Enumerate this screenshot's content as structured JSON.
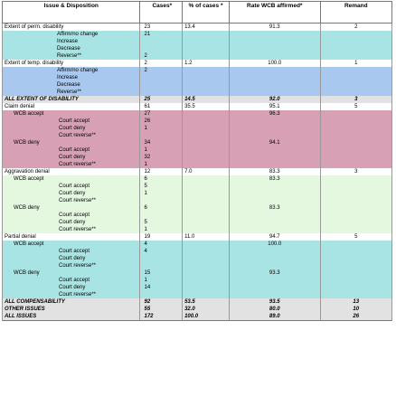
{
  "columns": [
    "Issue & Disposition",
    "Cases*",
    "% of cases *",
    "Rate WCB affirmed*",
    "Remand"
  ],
  "rows": [
    {
      "style": "white",
      "indent": 0,
      "cells": [
        "Extent of perm. disability",
        "23",
        "13.4",
        "91.3",
        "2"
      ]
    },
    {
      "style": "teal",
      "indent": 2,
      "cells": [
        "Affirm/no change",
        "21",
        "",
        "",
        ""
      ]
    },
    {
      "style": "teal",
      "indent": 2,
      "cells": [
        "Increase",
        "",
        "",
        "",
        ""
      ]
    },
    {
      "style": "teal",
      "indent": 2,
      "cells": [
        "Decrease",
        "",
        "",
        "",
        ""
      ]
    },
    {
      "style": "teal",
      "indent": 2,
      "cells": [
        "Reverse**",
        "2",
        "",
        "",
        ""
      ]
    },
    {
      "style": "white",
      "indent": 0,
      "cells": [
        "Extent of temp. disability",
        "2",
        "1.2",
        "100.0",
        "1"
      ]
    },
    {
      "style": "blue",
      "indent": 2,
      "cells": [
        "Affirm/no change",
        "2",
        "",
        "",
        ""
      ]
    },
    {
      "style": "blue",
      "indent": 2,
      "cells": [
        "Increase",
        "",
        "",
        "",
        ""
      ]
    },
    {
      "style": "blue",
      "indent": 2,
      "cells": [
        "Decrease",
        "",
        "",
        "",
        ""
      ]
    },
    {
      "style": "blue",
      "indent": 2,
      "cells": [
        "Reverse**",
        "",
        "",
        "",
        ""
      ]
    },
    {
      "style": "gray",
      "indent": 0,
      "cells": [
        "ALL EXTENT OF DISABILITY",
        "25",
        "14.5",
        "92.0",
        "3"
      ]
    },
    {
      "style": "white",
      "indent": 0,
      "cells": [
        "Claim denial",
        "61",
        "35.5",
        "95.1",
        "5"
      ]
    },
    {
      "style": "pink",
      "indent": 1,
      "cells": [
        "WCB accept",
        "27",
        "",
        "96.3",
        ""
      ]
    },
    {
      "style": "pink",
      "indent": 3,
      "cells": [
        "Court accept",
        "26",
        "",
        "",
        ""
      ]
    },
    {
      "style": "pink",
      "indent": 3,
      "cells": [
        "Court deny",
        "1",
        "",
        "",
        ""
      ]
    },
    {
      "style": "pink",
      "indent": 3,
      "cells": [
        "Court reverse**",
        "",
        "",
        "",
        ""
      ]
    },
    {
      "style": "pink",
      "indent": 1,
      "cells": [
        "WCB deny",
        "34",
        "",
        "94.1",
        ""
      ]
    },
    {
      "style": "pink",
      "indent": 3,
      "cells": [
        "Court accept",
        "1",
        "",
        "",
        ""
      ]
    },
    {
      "style": "pink",
      "indent": 3,
      "cells": [
        "Court deny",
        "32",
        "",
        "",
        ""
      ]
    },
    {
      "style": "pink",
      "indent": 3,
      "cells": [
        "Court reverse**",
        "1",
        "",
        "",
        ""
      ]
    },
    {
      "style": "white",
      "indent": 0,
      "cells": [
        "Aggravation denial",
        "12",
        "7.0",
        "83.3",
        "3"
      ]
    },
    {
      "style": "green",
      "indent": 1,
      "cells": [
        "WCB accept",
        "6",
        "",
        "83.3",
        ""
      ]
    },
    {
      "style": "green",
      "indent": 3,
      "cells": [
        "Court accept",
        "5",
        "",
        "",
        ""
      ]
    },
    {
      "style": "green",
      "indent": 3,
      "cells": [
        "Court deny",
        "1",
        "",
        "",
        ""
      ]
    },
    {
      "style": "green",
      "indent": 3,
      "cells": [
        "Court reverse**",
        "",
        "",
        "",
        ""
      ]
    },
    {
      "style": "green",
      "indent": 1,
      "cells": [
        "WCB deny",
        "6",
        "",
        "83.3",
        ""
      ]
    },
    {
      "style": "green",
      "indent": 3,
      "cells": [
        "Court accept",
        "",
        "",
        "",
        ""
      ]
    },
    {
      "style": "green",
      "indent": 3,
      "cells": [
        "Court deny",
        "5",
        "",
        "",
        ""
      ]
    },
    {
      "style": "green",
      "indent": 3,
      "cells": [
        "Court reverse**",
        "1",
        "",
        "",
        ""
      ]
    },
    {
      "style": "white",
      "indent": 0,
      "cells": [
        "Partial denial",
        "19",
        "11.0",
        "94.7",
        "5"
      ]
    },
    {
      "style": "teal",
      "indent": 1,
      "cells": [
        "WCB accept",
        "4",
        "",
        "100.0",
        ""
      ]
    },
    {
      "style": "teal",
      "indent": 3,
      "cells": [
        "Court accept",
        "4",
        "",
        "",
        ""
      ]
    },
    {
      "style": "teal",
      "indent": 3,
      "cells": [
        "Court deny",
        "",
        "",
        "",
        ""
      ]
    },
    {
      "style": "teal",
      "indent": 3,
      "cells": [
        "Court reverse**",
        "",
        "",
        "",
        ""
      ]
    },
    {
      "style": "teal",
      "indent": 1,
      "cells": [
        "WCB deny",
        "15",
        "",
        "93.3",
        ""
      ]
    },
    {
      "style": "teal",
      "indent": 3,
      "cells": [
        "Court accept",
        "1",
        "",
        "",
        ""
      ]
    },
    {
      "style": "teal",
      "indent": 3,
      "cells": [
        "Court deny",
        "14",
        "",
        "",
        ""
      ]
    },
    {
      "style": "teal",
      "indent": 3,
      "cells": [
        "Court reverse**",
        "",
        "",
        "",
        ""
      ]
    },
    {
      "style": "gray",
      "indent": 0,
      "cells": [
        "ALL COMPENSABILITY",
        "92",
        "53.5",
        "93.5",
        "13"
      ]
    },
    {
      "style": "gray",
      "indent": 0,
      "cells": [
        "OTHER ISSUES",
        "55",
        "32.0",
        "80.0",
        "10"
      ]
    },
    {
      "style": "gray",
      "indent": 0,
      "cells": [
        "ALL ISSUES",
        "172",
        "100.0",
        "89.0",
        "26"
      ]
    }
  ],
  "colors": {
    "teal": "#a8e4e4",
    "blue": "#a8c8f0",
    "pink": "#d8a0b4",
    "green": "#e4f8e0",
    "gray": "#e2e2e2"
  }
}
